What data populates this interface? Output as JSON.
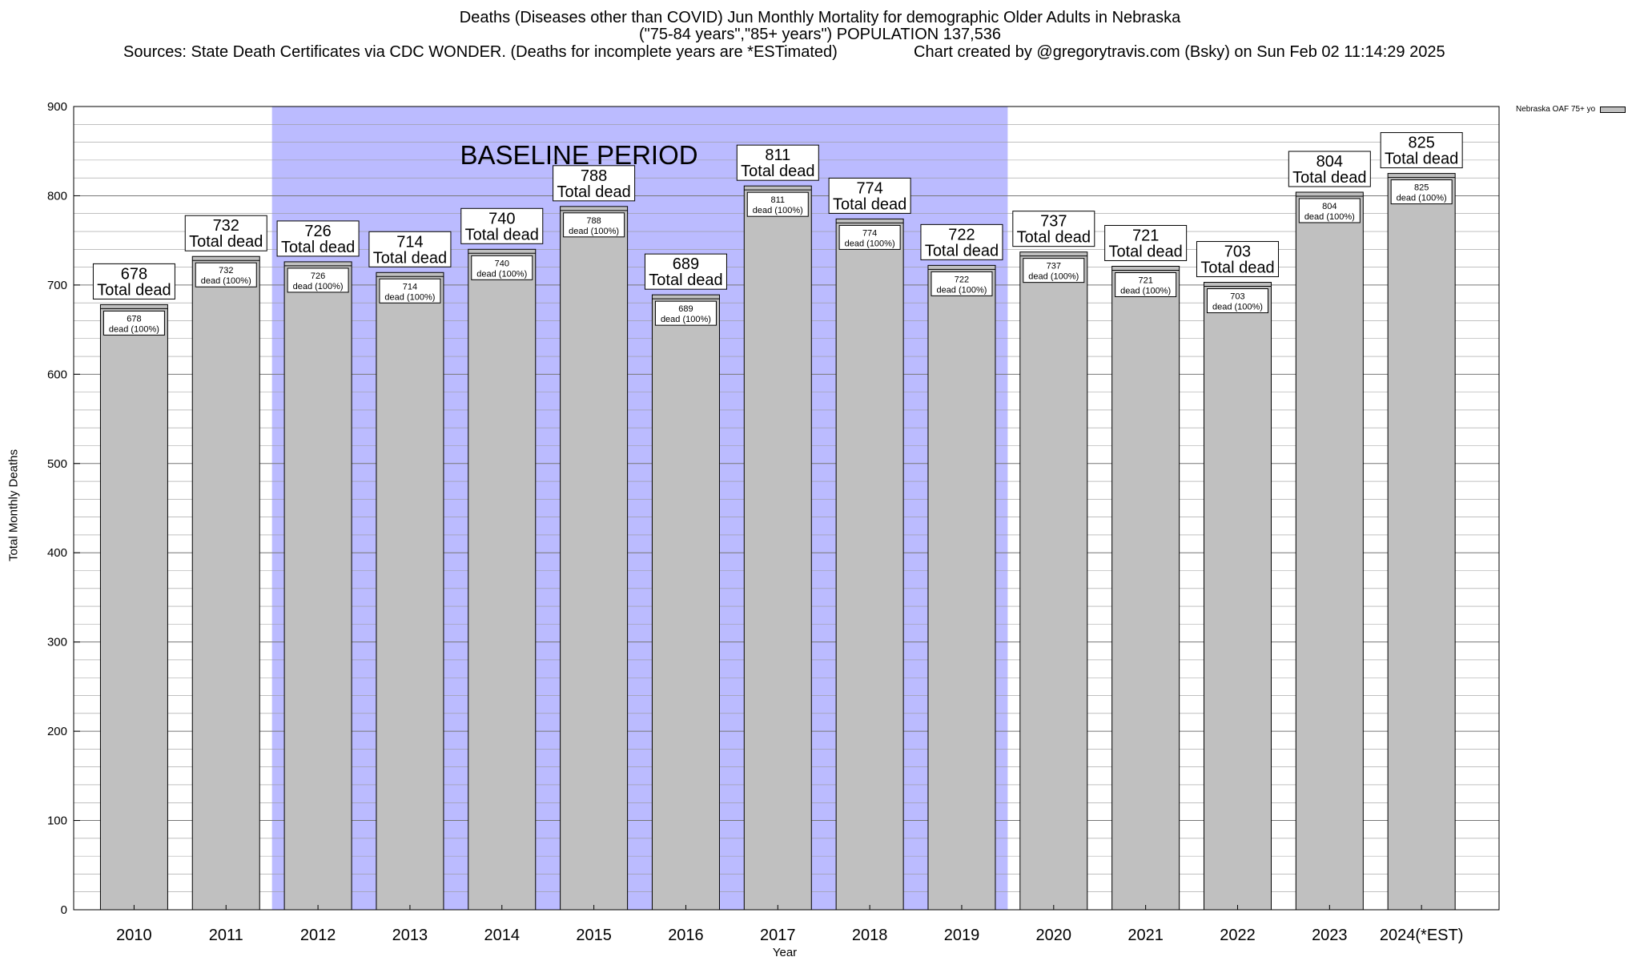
{
  "header": {
    "title_line1": "Deaths (Diseases other than COVID) Jun Monthly Mortality for demographic Older Adults in Nebraska",
    "title_line2": "(\"75-84 years\",\"85+ years\") POPULATION 137,536",
    "sources": "Sources: State Death Certificates via CDC WONDER. (Deaths for incomplete years are *ESTimated)",
    "credit": "Chart created by @gregorytravis.com (Bsky) on Sun Feb 02 11:14:29 2025"
  },
  "legend": {
    "label": "Nebraska OAF 75+ yo"
  },
  "chart_data": {
    "type": "bar",
    "categories": [
      "2010",
      "2011",
      "2012",
      "2013",
      "2014",
      "2015",
      "2016",
      "2017",
      "2018",
      "2019",
      "2020",
      "2021",
      "2022",
      "2023",
      "2024(*EST)"
    ],
    "series": [
      {
        "name": "Nebraska OAF 75+ yo",
        "values": [
          678,
          732,
          726,
          714,
          740,
          788,
          689,
          811,
          774,
          722,
          737,
          721,
          703,
          804,
          825
        ]
      }
    ],
    "xlabel": "Year",
    "ylabel": "Total Monthly Deaths",
    "ylim": [
      0,
      900
    ],
    "yticks": [
      0,
      100,
      200,
      300,
      400,
      500,
      600,
      700,
      800,
      900
    ],
    "grid": true,
    "baseline_period": {
      "label": "BASELINE PERIOD",
      "from": "2012",
      "to": "2019"
    },
    "total_label_suffix": "Total dead",
    "inner_label_suffix": "dead (100%)",
    "legend_position": "top-right",
    "colors": {
      "bar": "#c0c0c0",
      "baseline": "#bbbbff"
    }
  }
}
